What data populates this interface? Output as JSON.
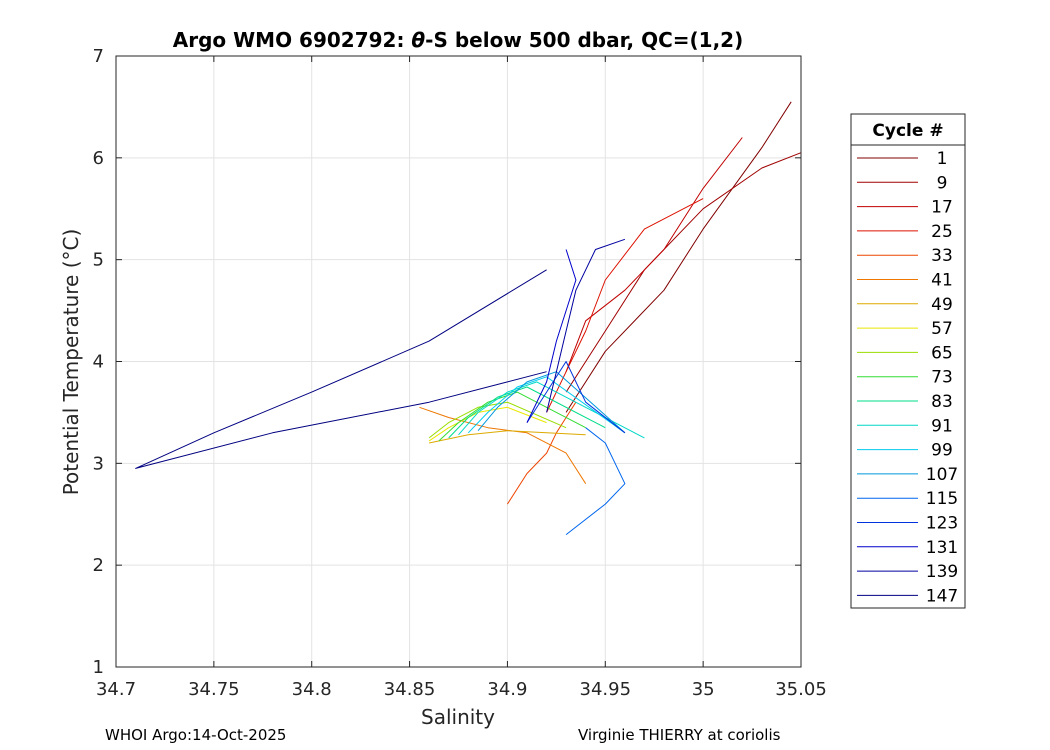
{
  "chart_data": {
    "type": "line",
    "title_prefix": "Argo WMO 6902792: ",
    "title_theta": "θ",
    "title_suffix": "-S below 500 dbar,  QC=(1,2)",
    "xlabel": "Salinity",
    "ylabel": "Potential Temperature (°C)",
    "xlim": [
      34.7,
      35.05
    ],
    "ylim": [
      1,
      7
    ],
    "xticks": [
      34.7,
      34.75,
      34.8,
      34.85,
      34.9,
      34.95,
      35,
      35.05
    ],
    "xtick_labels": [
      "34.7",
      "34.75",
      "34.8",
      "34.85",
      "34.9",
      "34.95",
      "35",
      "35.05"
    ],
    "yticks": [
      1,
      2,
      3,
      4,
      5,
      6,
      7
    ],
    "ytick_labels": [
      "1",
      "2",
      "3",
      "4",
      "5",
      "6",
      "7"
    ],
    "grid": true,
    "legend_title": "Cycle #",
    "legend_position": "right",
    "series": [
      {
        "name": "1",
        "color": "#800000",
        "x": [
          34.93,
          34.95,
          34.98,
          35.0,
          35.03,
          35.045
        ],
        "y": [
          3.5,
          4.1,
          4.7,
          5.3,
          6.1,
          6.55
        ]
      },
      {
        "name": "9",
        "color": "#a00000",
        "x": [
          34.93,
          34.95,
          34.97,
          35.0,
          35.03,
          35.05
        ],
        "y": [
          3.7,
          4.3,
          4.9,
          5.5,
          5.9,
          6.05
        ]
      },
      {
        "name": "17",
        "color": "#c00000",
        "x": [
          34.93,
          34.94,
          34.96,
          34.98,
          35.0,
          35.02
        ],
        "y": [
          3.9,
          4.4,
          4.7,
          5.1,
          5.7,
          6.2
        ]
      },
      {
        "name": "25",
        "color": "#dd1100",
        "x": [
          34.92,
          34.93,
          34.94,
          34.95,
          34.97,
          35.0
        ],
        "y": [
          3.5,
          3.9,
          4.3,
          4.8,
          5.3,
          5.6
        ]
      },
      {
        "name": "33",
        "color": "#ee4400",
        "x": [
          34.9,
          34.91,
          34.92,
          34.925,
          34.93,
          34.935
        ],
        "y": [
          2.6,
          2.9,
          3.1,
          3.3,
          3.45,
          3.6
        ]
      },
      {
        "name": "41",
        "color": "#ee7700",
        "x": [
          34.855,
          34.87,
          34.89,
          34.91,
          34.93,
          34.94
        ],
        "y": [
          3.55,
          3.45,
          3.35,
          3.3,
          3.1,
          2.8
        ]
      },
      {
        "name": "49",
        "color": "#ddaa00",
        "x": [
          34.86,
          34.88,
          34.9,
          34.92,
          34.94
        ],
        "y": [
          3.2,
          3.28,
          3.32,
          3.3,
          3.28
        ]
      },
      {
        "name": "57",
        "color": "#e8e800",
        "x": [
          34.86,
          34.87,
          34.885,
          34.9,
          34.92
        ],
        "y": [
          3.22,
          3.35,
          3.5,
          3.55,
          3.4
        ]
      },
      {
        "name": "65",
        "color": "#99dd00",
        "x": [
          34.86,
          34.87,
          34.885,
          34.9,
          34.93
        ],
        "y": [
          3.25,
          3.4,
          3.55,
          3.6,
          3.35
        ]
      },
      {
        "name": "73",
        "color": "#33dd33",
        "x": [
          34.865,
          34.875,
          34.89,
          34.905,
          34.94
        ],
        "y": [
          3.22,
          3.4,
          3.6,
          3.7,
          3.35
        ]
      },
      {
        "name": "83",
        "color": "#00dd88",
        "x": [
          34.87,
          34.88,
          34.895,
          34.91,
          34.95
        ],
        "y": [
          3.25,
          3.45,
          3.65,
          3.75,
          3.35
        ]
      },
      {
        "name": "91",
        "color": "#00d8c8",
        "x": [
          34.875,
          34.885,
          34.9,
          34.915,
          34.97
        ],
        "y": [
          3.28,
          3.5,
          3.7,
          3.8,
          3.25
        ]
      },
      {
        "name": "99",
        "color": "#00ccee",
        "x": [
          34.88,
          34.89,
          34.905,
          34.92,
          34.96
        ],
        "y": [
          3.3,
          3.5,
          3.75,
          3.85,
          3.3
        ]
      },
      {
        "name": "107",
        "color": "#0099dd",
        "x": [
          34.885,
          34.895,
          34.91,
          34.925,
          34.96
        ],
        "y": [
          3.32,
          3.55,
          3.8,
          3.9,
          3.3
        ]
      },
      {
        "name": "115",
        "color": "#0066ee",
        "x": [
          34.94,
          34.95,
          34.955,
          34.96,
          34.95,
          34.93
        ],
        "y": [
          3.35,
          3.2,
          3.0,
          2.8,
          2.6,
          2.3
        ]
      },
      {
        "name": "123",
        "color": "#0033dd",
        "x": [
          34.91,
          34.92,
          34.93,
          34.94,
          34.96
        ],
        "y": [
          3.4,
          3.7,
          4.0,
          3.6,
          3.3
        ]
      },
      {
        "name": "131",
        "color": "#0000cc",
        "x": [
          34.91,
          34.92,
          34.925,
          34.93,
          34.935,
          34.93
        ],
        "y": [
          3.4,
          3.8,
          4.2,
          4.5,
          4.8,
          5.1
        ]
      },
      {
        "name": "139",
        "color": "#0000a0",
        "x": [
          34.92,
          34.925,
          34.93,
          34.935,
          34.945,
          34.96
        ],
        "y": [
          3.5,
          3.9,
          4.3,
          4.7,
          5.1,
          5.2
        ]
      },
      {
        "name": "147",
        "color": "#000080",
        "x": [
          34.92,
          34.86,
          34.78,
          34.71,
          34.75,
          34.8,
          34.86,
          34.92
        ],
        "y": [
          3.9,
          3.6,
          3.3,
          2.95,
          3.3,
          3.7,
          4.2,
          4.9
        ]
      }
    ]
  },
  "footer": {
    "left": "WHOI Argo:14-Oct-2025",
    "right": "Virginie THIERRY at coriolis"
  }
}
